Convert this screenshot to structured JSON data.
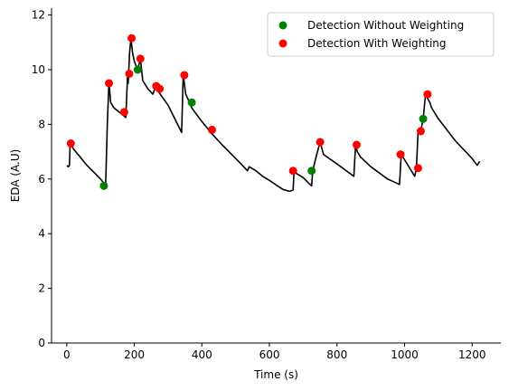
{
  "chart_data": {
    "type": "line",
    "xlabel": "Time (s)",
    "ylabel": "EDA (A.U)",
    "xlim": [
      -45,
      1285
    ],
    "ylim": [
      0,
      12.25
    ],
    "xticks": [
      0,
      200,
      400,
      600,
      800,
      1000,
      1200
    ],
    "yticks": [
      0,
      2,
      4,
      6,
      8,
      10,
      12
    ],
    "grid": false,
    "legend_position": "top-right",
    "colors": {
      "signal": "#000000",
      "without_weighting": "#008000",
      "with_weighting": "#ff0000"
    },
    "signal": {
      "x": [
        0,
        5,
        8,
        10,
        20,
        40,
        60,
        80,
        100,
        110,
        115,
        120,
        125,
        130,
        140,
        160,
        175,
        180,
        182,
        186,
        190,
        195,
        200,
        210,
        218,
        225,
        240,
        255,
        262,
        268,
        274,
        300,
        340,
        345,
        348,
        352,
        360,
        370,
        400,
        430,
        460,
        500,
        520,
        535,
        540,
        560,
        580,
        600,
        620,
        640,
        660,
        670,
        673,
        680,
        700,
        720,
        725,
        728,
        740,
        750,
        760,
        800,
        850,
        855,
        860,
        870,
        900,
        950,
        985,
        990,
        1000,
        1020,
        1030,
        1035,
        1040,
        1048,
        1055,
        1062,
        1068,
        1075,
        1080,
        1100,
        1150,
        1200,
        1215,
        1220,
        1222
      ],
      "y": [
        6.5,
        6.45,
        6.5,
        7.3,
        7.1,
        6.8,
        6.5,
        6.25,
        6.0,
        5.85,
        5.7,
        8.0,
        9.55,
        8.8,
        8.6,
        8.4,
        8.25,
        9.8,
        9.5,
        10.6,
        11.15,
        10.6,
        10.3,
        10.0,
        10.4,
        9.6,
        9.3,
        9.1,
        9.35,
        9.3,
        9.15,
        8.7,
        7.7,
        9.85,
        9.5,
        9.1,
        8.9,
        8.6,
        8.1,
        7.65,
        7.25,
        6.75,
        6.5,
        6.3,
        6.45,
        6.3,
        6.1,
        5.95,
        5.78,
        5.62,
        5.55,
        5.6,
        6.3,
        6.2,
        6.05,
        5.8,
        5.75,
        6.3,
        6.9,
        7.35,
        6.9,
        6.55,
        6.1,
        7.25,
        7.0,
        6.8,
        6.45,
        6.0,
        5.8,
        6.9,
        6.7,
        6.3,
        6.1,
        6.4,
        7.7,
        7.75,
        8.2,
        9.1,
        8.95,
        8.8,
        8.6,
        8.2,
        7.4,
        6.75,
        6.5,
        6.6,
        6.65
      ]
    },
    "series": [
      {
        "name": "Detection Without Weighting",
        "marker": "circle",
        "points": [
          {
            "x": 110,
            "y": 5.75
          },
          {
            "x": 210,
            "y": 10.0
          },
          {
            "x": 370,
            "y": 8.8
          },
          {
            "x": 725,
            "y": 6.3
          },
          {
            "x": 1055,
            "y": 8.2
          }
        ]
      },
      {
        "name": "Detection With Weighting",
        "marker": "circle",
        "points": [
          {
            "x": 12,
            "y": 7.3
          },
          {
            "x": 125,
            "y": 9.5
          },
          {
            "x": 170,
            "y": 8.45
          },
          {
            "x": 185,
            "y": 9.85
          },
          {
            "x": 192,
            "y": 11.15
          },
          {
            "x": 218,
            "y": 10.4
          },
          {
            "x": 265,
            "y": 9.4
          },
          {
            "x": 275,
            "y": 9.3
          },
          {
            "x": 348,
            "y": 9.8
          },
          {
            "x": 430,
            "y": 7.8
          },
          {
            "x": 670,
            "y": 6.3
          },
          {
            "x": 750,
            "y": 7.35
          },
          {
            "x": 858,
            "y": 7.25
          },
          {
            "x": 988,
            "y": 6.9
          },
          {
            "x": 1040,
            "y": 6.4
          },
          {
            "x": 1048,
            "y": 7.75
          },
          {
            "x": 1068,
            "y": 9.1
          }
        ]
      }
    ]
  }
}
